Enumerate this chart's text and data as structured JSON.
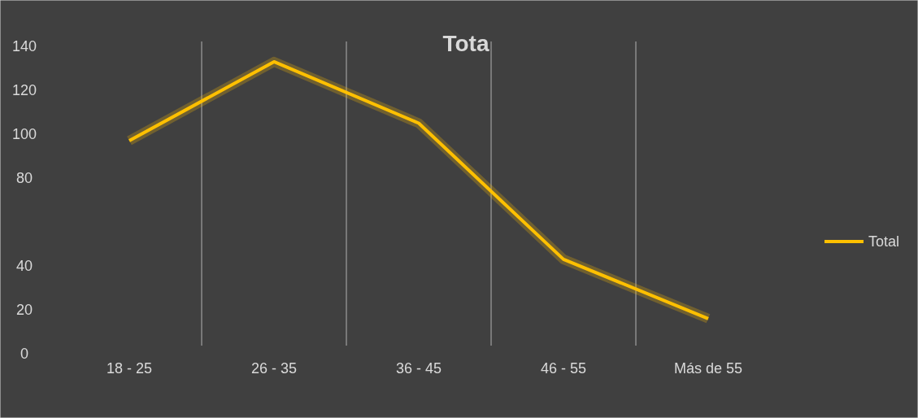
{
  "chart_data": {
    "type": "line",
    "title": "Tota",
    "categories": [
      "18 - 25",
      "26 - 35",
      "36 - 45",
      "46 - 55",
      "Más de 55"
    ],
    "series": [
      {
        "name": "Total",
        "color": "#ffc000",
        "values": [
          97,
          133,
          105,
          43,
          16
        ]
      }
    ],
    "ylim": [
      0,
      140
    ],
    "yticks": [
      0,
      20,
      40,
      80,
      100,
      120,
      140
    ],
    "grid": "x",
    "legend": "right",
    "marker": "none",
    "line_style": "solid"
  }
}
